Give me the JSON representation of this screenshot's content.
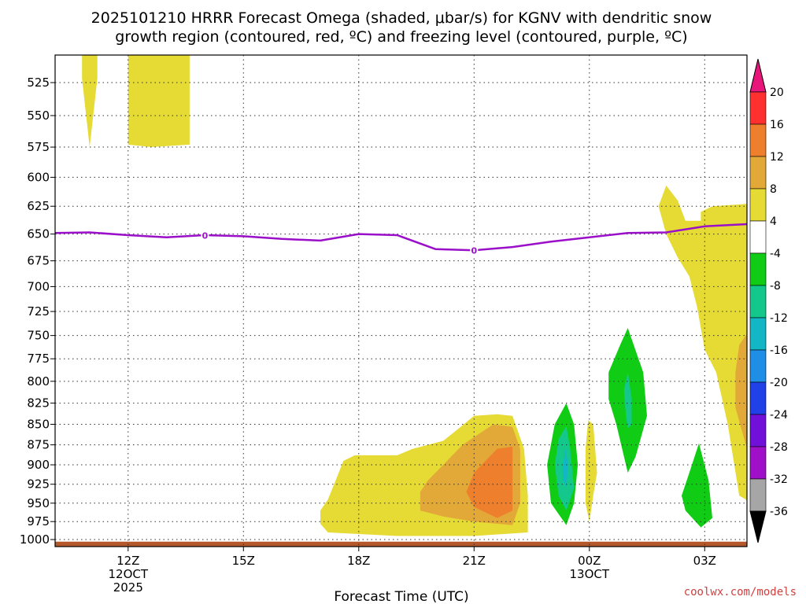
{
  "title_line1": "2025101210 HRRR Forecast Omega (shaded, μbar/s) for KGNV with dendritic snow",
  "title_line2": "growth region (contoured, red, ºC) and freezing level (contoured, purple, ºC)",
  "credit": "coolwx.com/models",
  "credit_color": "#d04040",
  "chart_data": {
    "type": "area",
    "xlabel": "Forecast Time (UTC)",
    "x_unit": "hours from 2025-10-12 12Z",
    "xlim": [
      -1.9,
      16.1
    ],
    "ylim": [
      1010,
      505
    ],
    "y_scale": "log-pressure",
    "grid": true,
    "y_ticks": [
      525,
      550,
      575,
      600,
      625,
      650,
      675,
      700,
      725,
      750,
      775,
      800,
      825,
      850,
      875,
      900,
      925,
      950,
      975,
      1000
    ],
    "x_ticks": [
      {
        "x": 0,
        "lines": [
          "12Z",
          "12OCT",
          "2025"
        ]
      },
      {
        "x": 3,
        "lines": [
          "15Z"
        ]
      },
      {
        "x": 6,
        "lines": [
          "18Z"
        ]
      },
      {
        "x": 9,
        "lines": [
          "21Z"
        ]
      },
      {
        "x": 12,
        "lines": [
          "00Z",
          "13OCT"
        ]
      },
      {
        "x": 15,
        "lines": [
          "03Z"
        ]
      }
    ],
    "colorbar": {
      "levels": [
        20,
        16,
        12,
        8,
        4,
        -4,
        -8,
        -12,
        -16,
        -20,
        -24,
        -28,
        -32,
        -36
      ],
      "colors": [
        "#ff3030",
        "#ee7f2c",
        "#e2a938",
        "#e6db34",
        "#ffffff",
        "#10cc14",
        "#14c88c",
        "#12b6c4",
        "#1e8ee6",
        "#2040e8",
        "#7010d8",
        "#a010c8",
        "#a6a6a6"
      ],
      "top_color": "#e8157a",
      "bottom_color": "#000000"
    },
    "freezing_level": {
      "color": "#9a0fc8",
      "label": "0",
      "label_points": [
        {
          "x": 2.0,
          "p": 651
        },
        {
          "x": 9.0,
          "p": 665
        }
      ],
      "points": [
        [
          -1.9,
          649
        ],
        [
          -1,
          648.5
        ],
        [
          0,
          651
        ],
        [
          1,
          653
        ],
        [
          2,
          651
        ],
        [
          3,
          652
        ],
        [
          4,
          654.5
        ],
        [
          5,
          656
        ],
        [
          6,
          650
        ],
        [
          7,
          651
        ],
        [
          8,
          664
        ],
        [
          9,
          665
        ],
        [
          10,
          662
        ],
        [
          11,
          657
        ],
        [
          12,
          653
        ],
        [
          13,
          649
        ],
        [
          14,
          648.5
        ],
        [
          15,
          643
        ],
        [
          16.1,
          641
        ]
      ]
    },
    "surface_band": {
      "color": "#b4582c",
      "p_top": 1003,
      "p_bottom": 1010
    },
    "omega_regions": [
      {
        "level": 4,
        "color": "#e6db34",
        "points": [
          [
            -1.2,
            505
          ],
          [
            -0.8,
            505
          ],
          [
            -0.8,
            522
          ],
          [
            -1.0,
            575
          ],
          [
            -1.2,
            522
          ]
        ]
      },
      {
        "level": 4,
        "color": "#e6db34",
        "points": [
          [
            0.0,
            505
          ],
          [
            1.6,
            505
          ],
          [
            1.6,
            573
          ],
          [
            0.6,
            575
          ],
          [
            0.0,
            573
          ],
          [
            0.0,
            510
          ]
        ]
      },
      {
        "level": 4,
        "color": "#e6db34",
        "points": [
          [
            5.0,
            978
          ],
          [
            5.0,
            960
          ],
          [
            5.2,
            945
          ],
          [
            5.4,
            920
          ],
          [
            5.6,
            895
          ],
          [
            5.9,
            888
          ],
          [
            7.0,
            888
          ],
          [
            7.4,
            880
          ],
          [
            8.2,
            870
          ],
          [
            8.6,
            855
          ],
          [
            9.0,
            840
          ],
          [
            9.6,
            838
          ],
          [
            10.0,
            840
          ],
          [
            10.3,
            880
          ],
          [
            10.4,
            940
          ],
          [
            10.4,
            990
          ],
          [
            9.0,
            995
          ],
          [
            7.0,
            995
          ],
          [
            5.2,
            990
          ]
        ]
      },
      {
        "level": 8,
        "color": "#e2a938",
        "points": [
          [
            7.6,
            960
          ],
          [
            7.6,
            935
          ],
          [
            7.8,
            920
          ],
          [
            8.1,
            905
          ],
          [
            8.7,
            875
          ],
          [
            9.5,
            850
          ],
          [
            10.0,
            853
          ],
          [
            10.2,
            880
          ],
          [
            10.2,
            950
          ],
          [
            10.0,
            980
          ],
          [
            9.0,
            975
          ],
          [
            8.2,
            968
          ]
        ]
      },
      {
        "level": 12,
        "color": "#ee7f2c",
        "points": [
          [
            8.8,
            935
          ],
          [
            9.0,
            910
          ],
          [
            9.6,
            880
          ],
          [
            10.0,
            877
          ],
          [
            10.0,
            960
          ],
          [
            9.6,
            970
          ],
          [
            9.0,
            955
          ]
        ]
      },
      {
        "level": -4,
        "color": "#10cc14",
        "points": [
          [
            10.9,
            900
          ],
          [
            11.1,
            850
          ],
          [
            11.4,
            825
          ],
          [
            11.6,
            850
          ],
          [
            11.7,
            900
          ],
          [
            11.6,
            950
          ],
          [
            11.4,
            980
          ],
          [
            11.0,
            950
          ]
        ]
      },
      {
        "level": -8,
        "color": "#14c88c",
        "points": [
          [
            11.1,
            900
          ],
          [
            11.2,
            868
          ],
          [
            11.4,
            852
          ],
          [
            11.5,
            880
          ],
          [
            11.6,
            930
          ],
          [
            11.4,
            960
          ],
          [
            11.2,
            940
          ]
        ]
      },
      {
        "level": -12,
        "color": "#12b6c4",
        "points": [
          [
            11.3,
            905
          ],
          [
            11.38,
            880
          ],
          [
            11.45,
            900
          ],
          [
            11.4,
            930
          ],
          [
            11.32,
            920
          ]
        ]
      },
      {
        "level": 4,
        "color": "#e6db34",
        "points": [
          [
            11.9,
            880
          ],
          [
            11.97,
            845
          ],
          [
            12.1,
            850
          ],
          [
            12.2,
            910
          ],
          [
            12.1,
            940
          ],
          [
            12.0,
            975
          ],
          [
            11.9,
            950
          ]
        ]
      },
      {
        "level": -4,
        "color": "#10cc14",
        "points": [
          [
            12.5,
            790
          ],
          [
            12.8,
            760
          ],
          [
            13.0,
            742
          ],
          [
            13.4,
            790
          ],
          [
            13.5,
            840
          ],
          [
            13.2,
            890
          ],
          [
            13.0,
            910
          ],
          [
            12.7,
            850
          ],
          [
            12.5,
            820
          ]
        ]
      },
      {
        "level": -8,
        "color": "#14c88c",
        "points": [
          [
            12.9,
            810
          ],
          [
            13.0,
            790
          ],
          [
            13.1,
            820
          ],
          [
            13.1,
            850
          ],
          [
            13.0,
            855
          ],
          [
            12.95,
            840
          ]
        ]
      },
      {
        "level": 4,
        "color": "#e6db34",
        "points": [
          [
            14.9,
            638
          ],
          [
            14.9,
            630
          ],
          [
            15.2,
            625
          ],
          [
            16.1,
            623
          ],
          [
            16.1,
            946
          ],
          [
            15.9,
            940
          ],
          [
            15.6,
            850
          ],
          [
            15.3,
            790
          ],
          [
            15.0,
            765
          ],
          [
            14.8,
            720
          ],
          [
            14.6,
            690
          ],
          [
            14.3,
            672
          ],
          [
            14.0,
            650
          ],
          [
            13.8,
            625
          ],
          [
            14.0,
            607
          ],
          [
            14.3,
            620
          ],
          [
            14.5,
            638
          ]
        ]
      },
      {
        "level": 8,
        "color": "#e2a938",
        "points": [
          [
            16.1,
            748
          ],
          [
            16.1,
            880
          ],
          [
            15.8,
            830
          ],
          [
            15.8,
            790
          ],
          [
            15.9,
            760
          ]
        ]
      },
      {
        "level": -4,
        "color": "#10cc14",
        "points": [
          [
            14.4,
            940
          ],
          [
            14.6,
            910
          ],
          [
            14.85,
            873
          ],
          [
            15.1,
            920
          ],
          [
            15.2,
            970
          ],
          [
            14.9,
            983
          ],
          [
            14.5,
            960
          ]
        ]
      }
    ]
  }
}
